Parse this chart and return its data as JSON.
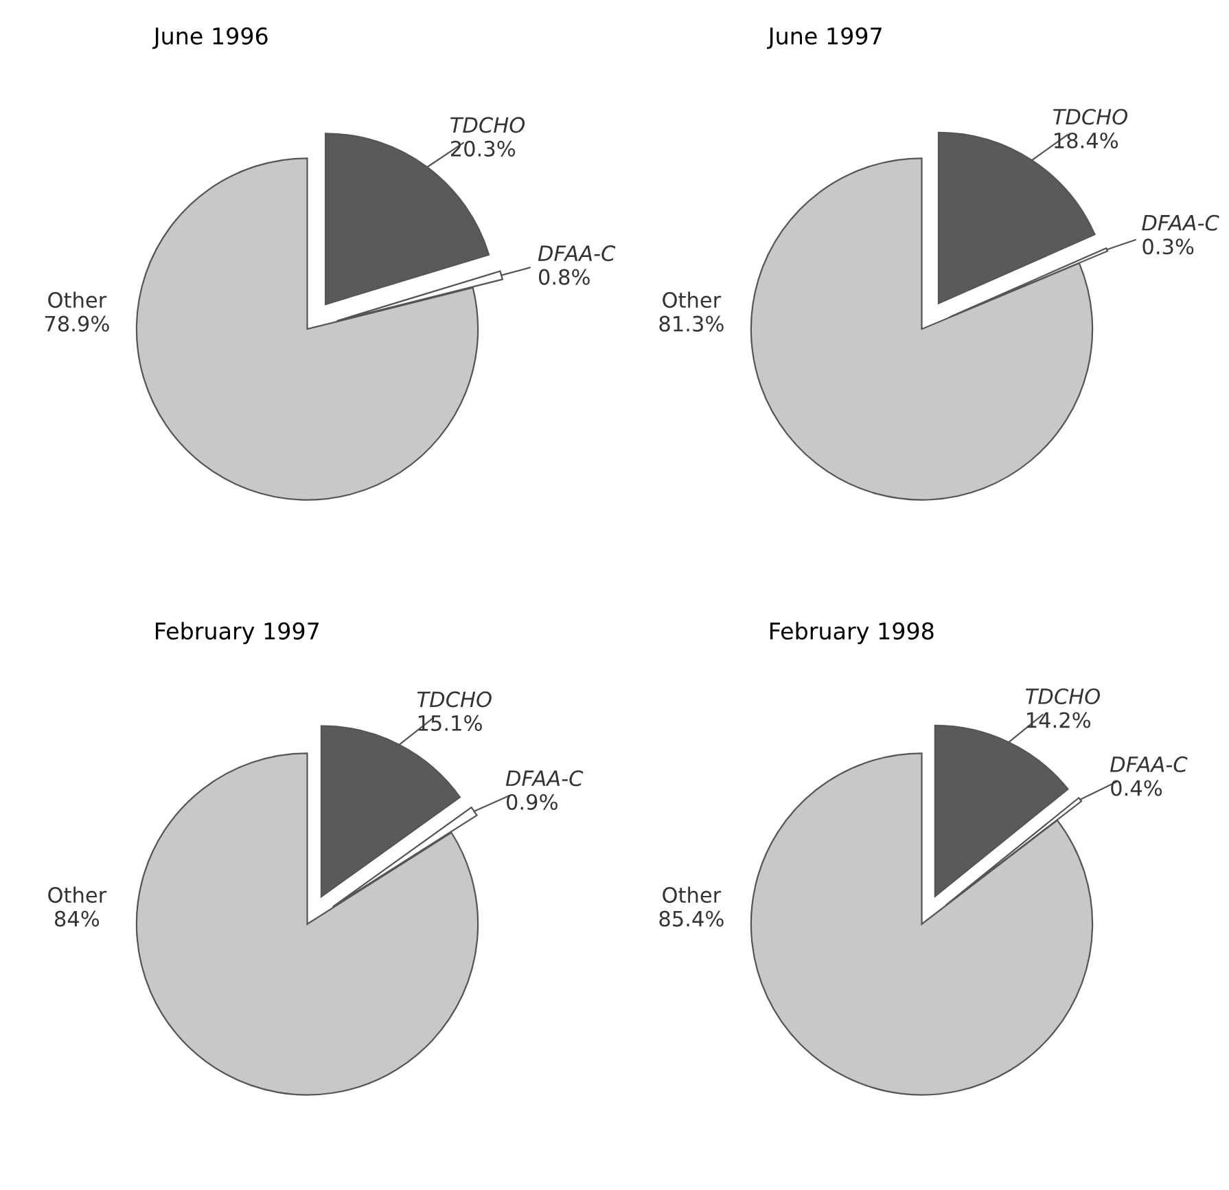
{
  "chart_data": [
    {
      "type": "pie",
      "title": "June 1996",
      "categories": [
        "TDCHO",
        "DFAA-C",
        "Other"
      ],
      "values": [
        20.3,
        0.8,
        78.9
      ],
      "value_labels": [
        "20.3%",
        "0.8%",
        "78.9%"
      ],
      "colors": [
        "#5a5a5a",
        "#ffffff",
        "#c8c8c8"
      ]
    },
    {
      "type": "pie",
      "title": "June 1997",
      "categories": [
        "TDCHO",
        "DFAA-C",
        "Other"
      ],
      "values": [
        18.4,
        0.3,
        81.3
      ],
      "value_labels": [
        "18.4%",
        "0.3%",
        "81.3%"
      ],
      "colors": [
        "#5a5a5a",
        "#ffffff",
        "#c8c8c8"
      ]
    },
    {
      "type": "pie",
      "title": "February 1997",
      "categories": [
        "TDCHO",
        "DFAA-C",
        "Other"
      ],
      "values": [
        15.1,
        0.9,
        84
      ],
      "value_labels": [
        "15.1%",
        "0.9%",
        "84%"
      ],
      "colors": [
        "#5a5a5a",
        "#ffffff",
        "#c8c8c8"
      ]
    },
    {
      "type": "pie",
      "title": "February 1998",
      "categories": [
        "TDCHO",
        "DFAA-C",
        "Other"
      ],
      "values": [
        14.2,
        0.4,
        85.4
      ],
      "value_labels": [
        "14.2%",
        "0.4%",
        "85.4%"
      ],
      "colors": [
        "#5a5a5a",
        "#ffffff",
        "#c8c8c8"
      ]
    }
  ]
}
